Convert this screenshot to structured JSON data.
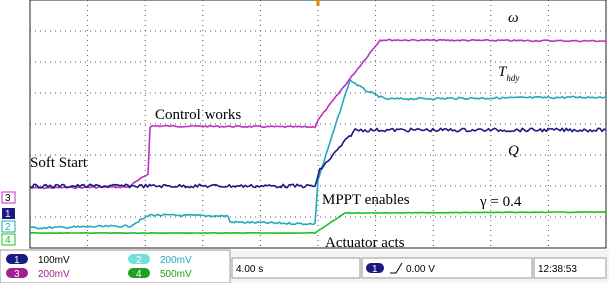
{
  "annotations": {
    "omega": "ω",
    "t_main": "T",
    "t_sub": "hdy",
    "q": "Q",
    "gamma": "γ = 0.4",
    "control_works": "Control works",
    "soft_start": "Soft Start",
    "mppt_enables": "MPPT enables",
    "actuator_acts": "Actuator acts"
  },
  "channel_markers": [
    "3",
    "1",
    "2",
    "4"
  ],
  "status_bar": {
    "channels": [
      {
        "id": "1",
        "scale": "100mV"
      },
      {
        "id": "2",
        "scale": "200mV"
      },
      {
        "id": "3",
        "scale": "200mV"
      },
      {
        "id": "4",
        "scale": "500mV"
      }
    ],
    "timebase": "4.00 s",
    "trigger_channel": "1",
    "trigger_level": "0.00 V",
    "clock": "12:38:53"
  }
}
